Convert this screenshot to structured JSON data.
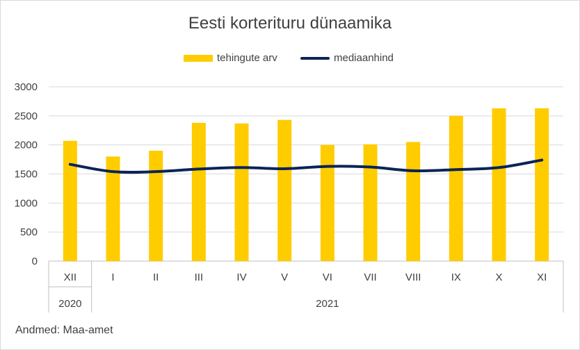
{
  "chart_data": {
    "type": "bar",
    "title": "Eesti korterituru dünaamika",
    "categories": [
      "XII",
      "I",
      "II",
      "III",
      "IV",
      "V",
      "VI",
      "VII",
      "VIII",
      "IX",
      "X",
      "XI"
    ],
    "groups": [
      {
        "label": "2020",
        "count": 1
      },
      {
        "label": "2021",
        "count": 11
      }
    ],
    "series": [
      {
        "name": "tehingute arv",
        "type": "bar",
        "color": "#FFCC00",
        "values": [
          2070,
          1800,
          1900,
          2380,
          2370,
          2430,
          2000,
          2010,
          2050,
          2500,
          2630,
          2630
        ]
      },
      {
        "name": "mediaanhind",
        "type": "line",
        "color": "#0B2457",
        "values": [
          1665,
          1540,
          1540,
          1585,
          1610,
          1590,
          1630,
          1620,
          1555,
          1575,
          1610,
          1740
        ]
      }
    ],
    "ylim": [
      0,
      3000
    ],
    "yticks": [
      "0",
      "500",
      "1000",
      "1500",
      "2000",
      "2500",
      "3000"
    ],
    "grid": true,
    "legend_position": "top"
  },
  "source_note": "Andmed: Maa-amet"
}
